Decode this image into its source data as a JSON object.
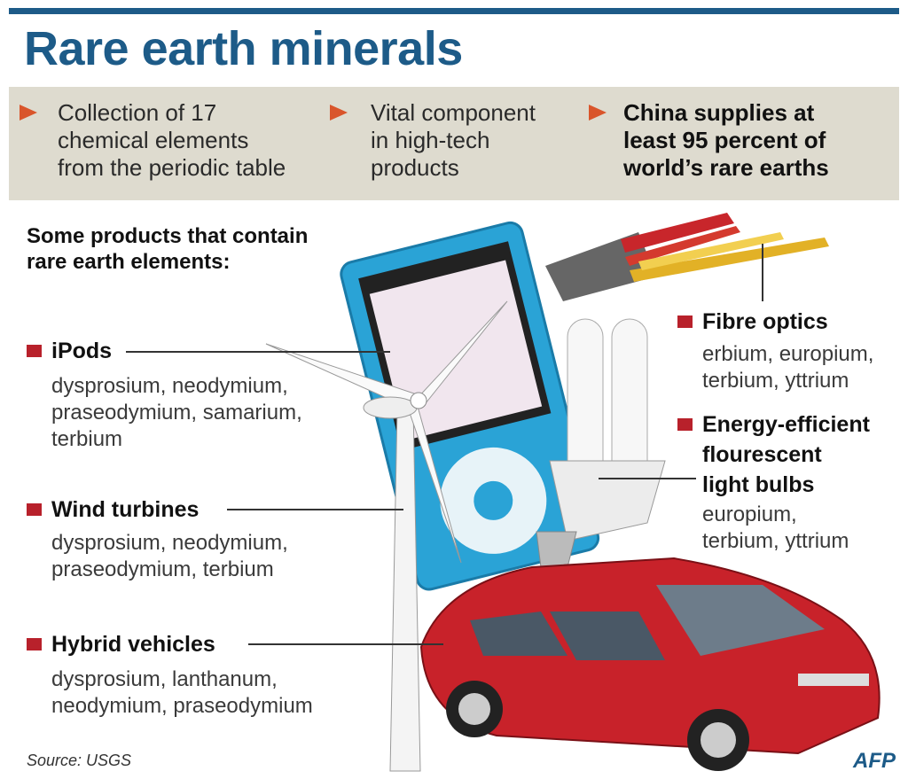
{
  "header": {
    "title": "Rare earth minerals"
  },
  "facts": [
    {
      "lines": [
        "Collection of 17",
        "chemical elements",
        "from the periodic table"
      ]
    },
    {
      "lines": [
        "Vital component",
        "in high-tech",
        "products"
      ]
    },
    {
      "lines": [
        "China supplies at",
        "least 95 percent of",
        "world’s rare earths"
      ]
    }
  ],
  "products_heading": {
    "lines": [
      "Some products that contain",
      "rare earth elements:"
    ]
  },
  "products": [
    {
      "name_lines": [
        "iPods"
      ],
      "element_lines": [
        "dysprosium, neodymium,",
        "praseodymium, samarium,",
        "terbium"
      ]
    },
    {
      "name_lines": [
        "Wind turbines"
      ],
      "element_lines": [
        "dysprosium, neodymium,",
        "praseodymium, terbium"
      ]
    },
    {
      "name_lines": [
        "Hybrid vehicles"
      ],
      "element_lines": [
        "dysprosium, lanthanum,",
        "neodymium, praseodymium"
      ]
    },
    {
      "name_lines": [
        "Fibre optics"
      ],
      "element_lines": [
        "erbium, europium,",
        "terbium, yttrium"
      ]
    },
    {
      "name_lines": [
        "Energy-efficient",
        "flourescent",
        "light bulbs"
      ],
      "element_lines": [
        "europium,",
        "terbium, yttrium"
      ]
    }
  ],
  "footer": {
    "source": "Source: USGS",
    "logo": "AFP"
  }
}
